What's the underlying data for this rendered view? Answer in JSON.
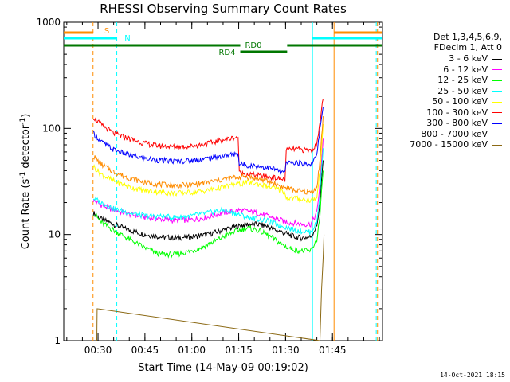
{
  "chart_data": {
    "type": "line",
    "title": "RHESSI Observing Summary Count Rates",
    "xlabel": "Start Time (14-May-09 00:19:02)",
    "ylabel_main": "Count Rate (s",
    "ylabel_sup1": "-1",
    "ylabel_mid": " detector",
    "ylabel_sup2": "-1",
    "ylabel_end": ")",
    "yscale": "log",
    "ylim": [
      1,
      1000
    ],
    "xlim_minutes": [
      19.03,
      121.0
    ],
    "x_ticks": [
      {
        "minute": 30,
        "label": "00:30"
      },
      {
        "minute": 45,
        "label": "00:45"
      },
      {
        "minute": 60,
        "label": "01:00"
      },
      {
        "minute": 75,
        "label": "01:15"
      },
      {
        "minute": 90,
        "label": "01:30"
      },
      {
        "minute": 105,
        "label": "01:45"
      }
    ],
    "y_ticks": [
      {
        "value": 1,
        "label": "1"
      },
      {
        "value": 10,
        "label": "10"
      },
      {
        "value": 100,
        "label": "100"
      },
      {
        "value": 1000,
        "label": "1000"
      }
    ],
    "legend_header": [
      "Det 1,3,4,5,6,9,",
      "FDecim 1, Att 0"
    ],
    "series": [
      {
        "name": "3 - 6 keV",
        "color": "#000000",
        "x": [
          28.5,
          31,
          35,
          40,
          45,
          50,
          55,
          60,
          65,
          70,
          75,
          78,
          81,
          84,
          87,
          89,
          91,
          93,
          95,
          98,
          100,
          101,
          102
        ],
        "y": [
          16,
          14,
          12.5,
          11,
          10,
          9.5,
          9.3,
          9.5,
          10,
          11,
          12,
          12.5,
          12.5,
          12,
          11,
          10.5,
          10,
          9.5,
          9.3,
          9.5,
          12,
          20,
          50
        ]
      },
      {
        "name": "6 - 12 keV",
        "color": "#ff00ff",
        "x": [
          28.5,
          31,
          35,
          40,
          45,
          50,
          55,
          60,
          65,
          70,
          75,
          78,
          81,
          84,
          87,
          89,
          91,
          93,
          95,
          98,
          100,
          101,
          102
        ],
        "y": [
          21,
          19,
          17,
          15.5,
          14.5,
          14,
          13.5,
          13.8,
          14.5,
          16,
          17,
          16.5,
          16,
          15,
          14,
          13.5,
          13,
          12.8,
          12.5,
          12.5,
          16,
          30,
          80
        ]
      },
      {
        "name": "12 - 25 keV",
        "color": "#00ff00",
        "x": [
          28.5,
          31,
          35,
          40,
          45,
          50,
          55,
          60,
          65,
          70,
          75,
          78,
          81,
          84,
          87,
          89,
          91,
          93,
          95,
          98,
          100,
          101,
          102
        ],
        "y": [
          16,
          13,
          11,
          9,
          7.5,
          6.5,
          6.5,
          7,
          8,
          9.5,
          11,
          11.5,
          11,
          10,
          8.8,
          8,
          7.5,
          7.2,
          7,
          7,
          9,
          15,
          40
        ]
      },
      {
        "name": "25 - 50 keV",
        "color": "#00ffff",
        "x": [
          28.5,
          31,
          35,
          40,
          45,
          50,
          55,
          60,
          65,
          70,
          75,
          78,
          81,
          84,
          87,
          89,
          91,
          93,
          95,
          98,
          100,
          101,
          102
        ],
        "y": [
          22,
          20,
          17.5,
          16,
          15,
          14.8,
          14.5,
          15,
          16,
          17,
          15.5,
          14.5,
          14,
          13.5,
          12.5,
          12,
          11.5,
          11,
          10.8,
          10.5,
          13,
          25,
          65
        ]
      },
      {
        "name": "50 - 100 keV",
        "color": "#ffff00",
        "x": [
          28.5,
          31,
          35,
          40,
          45,
          50,
          55,
          60,
          65,
          70,
          74.8,
          75.2,
          78,
          81,
          84,
          87,
          89.8,
          90.2,
          93,
          95,
          98,
          100,
          101,
          102
        ],
        "y": [
          44,
          37,
          32,
          28,
          26,
          25,
          24.5,
          25,
          26,
          28,
          30,
          30,
          31,
          30,
          28.5,
          27,
          25,
          22,
          22,
          21.5,
          21,
          22,
          40,
          110
        ]
      },
      {
        "name": "100 - 300 keV",
        "color": "#ff0000",
        "x": [
          28.5,
          31,
          35,
          40,
          45,
          50,
          55,
          60,
          65,
          70,
          74.8,
          75.2,
          78,
          81,
          84,
          87,
          89.8,
          90.2,
          93,
          95,
          98,
          100,
          101,
          102
        ],
        "y": [
          128,
          108,
          90,
          80,
          72,
          68,
          67,
          68,
          72,
          78,
          83,
          38,
          37,
          36,
          35,
          34,
          33,
          62,
          64,
          63,
          62,
          70,
          120,
          190
        ]
      },
      {
        "name": "300 - 800 keV",
        "color": "#0000ff",
        "x": [
          28.5,
          31,
          35,
          40,
          45,
          50,
          55,
          60,
          65,
          70,
          74.8,
          75.2,
          78,
          81,
          84,
          87,
          89.8,
          90.2,
          93,
          95,
          98,
          100,
          101,
          102
        ],
        "y": [
          90,
          75,
          63,
          56,
          52,
          50,
          49,
          50,
          52,
          55,
          58,
          46,
          45,
          44,
          43,
          41,
          38,
          47,
          48,
          47,
          46,
          55,
          100,
          160
        ]
      },
      {
        "name": "800 - 7000 keV",
        "color": "#ff8c00",
        "x": [
          28.5,
          31,
          35,
          40,
          45,
          50,
          55,
          60,
          65,
          70,
          75,
          78,
          81,
          84,
          87,
          89,
          91,
          93,
          95,
          98,
          100,
          101,
          102
        ],
        "y": [
          55,
          46,
          39,
          34,
          31,
          29.5,
          29,
          29.5,
          31,
          33,
          35,
          35,
          33.5,
          32,
          30,
          28,
          27,
          26,
          25.5,
          25,
          28,
          50,
          130
        ]
      },
      {
        "name": "7000 - 15000 keV",
        "color": "#8b6914",
        "x": [
          29.6,
          29.7,
          101,
          101.5,
          102,
          102.3
        ],
        "y": [
          1,
          2,
          1,
          3,
          6,
          10
        ]
      }
    ],
    "flag_bars": [
      {
        "label": "S",
        "color": "#ff8c00",
        "segments": [
          [
            19.03,
            28.5
          ],
          [
            105.5,
            121.0
          ]
        ]
      },
      {
        "label": "N",
        "color": "#00ffff",
        "segments": [
          [
            19.03,
            36.0
          ],
          [
            98.6,
            121.0
          ]
        ]
      },
      {
        "label": "RD0",
        "color": "#007700",
        "segments": [
          [
            19.03,
            75.5
          ],
          [
            90.5,
            121.0
          ]
        ]
      },
      {
        "label": "RD4",
        "color": "#007700",
        "segments": [
          [
            75.5,
            90.5
          ]
        ]
      }
    ],
    "vertical_lines": [
      {
        "minute": 28.4,
        "color": "#ff8c00",
        "dashed": true
      },
      {
        "minute": 36.0,
        "color": "#00ffff",
        "dashed": true
      },
      {
        "minute": 98.6,
        "color": "#00ffff",
        "dashed": false
      },
      {
        "minute": 105.5,
        "color": "#ff8c00",
        "dashed": false
      },
      {
        "minute": 119.0,
        "color": "#00ffff",
        "dashed": true
      },
      {
        "minute": 119.4,
        "color": "#ff8c00",
        "dashed": true
      }
    ]
  },
  "footer": {
    "stamp": "14-Oct-2021 18:15"
  }
}
